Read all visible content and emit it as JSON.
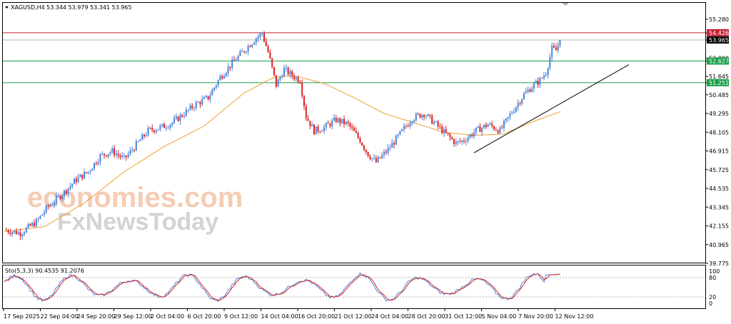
{
  "header": {
    "symbol_label": "XAGUSD,H4",
    "ohlc_text": "53.344 53.979 53.341 53.965"
  },
  "watermark": {
    "brand1": "economies.com",
    "brand2": "FxNewsToday"
  },
  "indicator": {
    "label": "Sto(5,3,3) 90.4535 91.2076"
  },
  "colors": {
    "bull": "#4a7fd6",
    "bear": "#d82020",
    "ma": "#f0a030",
    "stoch_main": "#4a7fd6",
    "stoch_signal": "#d82020",
    "resistance": "#c62035",
    "support": "#1aa04a",
    "trend": "#000000"
  },
  "chart_data": {
    "type": "candlestick",
    "title": "XAGUSD,H4",
    "y_ticks": [
      "55.280",
      "54.426",
      "53.965",
      "52.800",
      "52.627",
      "51.645",
      "51.251",
      "50.485",
      "49.295",
      "48.105",
      "46.915",
      "45.725",
      "44.535",
      "43.345",
      "42.155",
      "40.965",
      "39.775"
    ],
    "ylim": [
      39.775,
      55.75
    ],
    "x_ticks": [
      "17 Sep 2025",
      "22 Sep 04:00",
      "24 Sep 20:00",
      "29 Sep 12:00",
      "2 Oct 04:00",
      "6 Oct 20:00",
      "9 Oct 12:00",
      "14 Oct 04:00",
      "16 Oct 20:00",
      "21 Oct 12:00",
      "24 Oct 04:00",
      "28 Oct 20:00",
      "31 Oct 12:00",
      "5 Nov 04:00",
      "7 Nov 20:00",
      "12 Nov 12:00"
    ],
    "price_path": [
      [
        0,
        41.9
      ],
      [
        8,
        41.7
      ],
      [
        16,
        42.4
      ],
      [
        22,
        43.4
      ],
      [
        30,
        44.3
      ],
      [
        36,
        45.1
      ],
      [
        42,
        45.6
      ],
      [
        48,
        46.6
      ],
      [
        54,
        46.9
      ],
      [
        60,
        46.4
      ],
      [
        66,
        47.3
      ],
      [
        72,
        48.2
      ],
      [
        78,
        48.4
      ],
      [
        84,
        48.7
      ],
      [
        90,
        49.3
      ],
      [
        96,
        49.9
      ],
      [
        102,
        50.3
      ],
      [
        108,
        51.6
      ],
      [
        114,
        52.5
      ],
      [
        120,
        53.3
      ],
      [
        126,
        54.1
      ],
      [
        129,
        54.4
      ],
      [
        132,
        53.2
      ],
      [
        136,
        51.1
      ],
      [
        140,
        52.1
      ],
      [
        144,
        51.7
      ],
      [
        148,
        51.4
      ],
      [
        151,
        49.1
      ],
      [
        155,
        48.2
      ],
      [
        160,
        48.4
      ],
      [
        166,
        48.9
      ],
      [
        172,
        48.6
      ],
      [
        178,
        47.6
      ],
      [
        182,
        46.7
      ],
      [
        186,
        46.2
      ],
      [
        192,
        47.0
      ],
      [
        198,
        48.0
      ],
      [
        204,
        49.0
      ],
      [
        210,
        49.3
      ],
      [
        216,
        48.6
      ],
      [
        220,
        48.1
      ],
      [
        226,
        47.4
      ],
      [
        230,
        47.6
      ],
      [
        236,
        48.2
      ],
      [
        242,
        48.6
      ],
      [
        248,
        48.2
      ],
      [
        254,
        49.4
      ],
      [
        260,
        50.5
      ],
      [
        264,
        51.0
      ],
      [
        268,
        51.4
      ],
      [
        271,
        51.9
      ],
      [
        274,
        53.4
      ],
      [
        276,
        53.3
      ],
      [
        278,
        53.965
      ]
    ],
    "ma_path": [
      [
        0,
        41.8
      ],
      [
        20,
        42.1
      ],
      [
        40,
        43.6
      ],
      [
        60,
        45.6
      ],
      [
        80,
        47.2
      ],
      [
        100,
        48.5
      ],
      [
        120,
        50.6
      ],
      [
        135,
        51.6
      ],
      [
        145,
        51.7
      ],
      [
        160,
        51.2
      ],
      [
        175,
        50.3
      ],
      [
        190,
        49.3
      ],
      [
        205,
        48.7
      ],
      [
        220,
        48.1
      ],
      [
        235,
        47.9
      ],
      [
        250,
        48.0
      ],
      [
        265,
        48.8
      ],
      [
        278,
        49.4
      ]
    ],
    "levels": [
      {
        "value": 54.426,
        "label": "54.426",
        "role": "resistance"
      },
      {
        "value": 52.627,
        "label": "52.627",
        "role": "support"
      },
      {
        "value": 51.251,
        "label": "51.251",
        "role": "support"
      }
    ],
    "current_price": {
      "value": 53.965,
      "label": "53.965"
    },
    "trendline": {
      "from": [
        46.8,
        "5 Nov 04:00"
      ],
      "to": [
        52.4,
        "after 12 Nov 12:00"
      ]
    },
    "stochastic": {
      "name": "Sto(5,3,3)",
      "main": 90.4535,
      "signal": 91.2076,
      "levels": [
        20,
        80
      ],
      "y_ticks": [
        "100",
        "80",
        "20",
        "0"
      ],
      "ylim": [
        0,
        100
      ]
    }
  }
}
